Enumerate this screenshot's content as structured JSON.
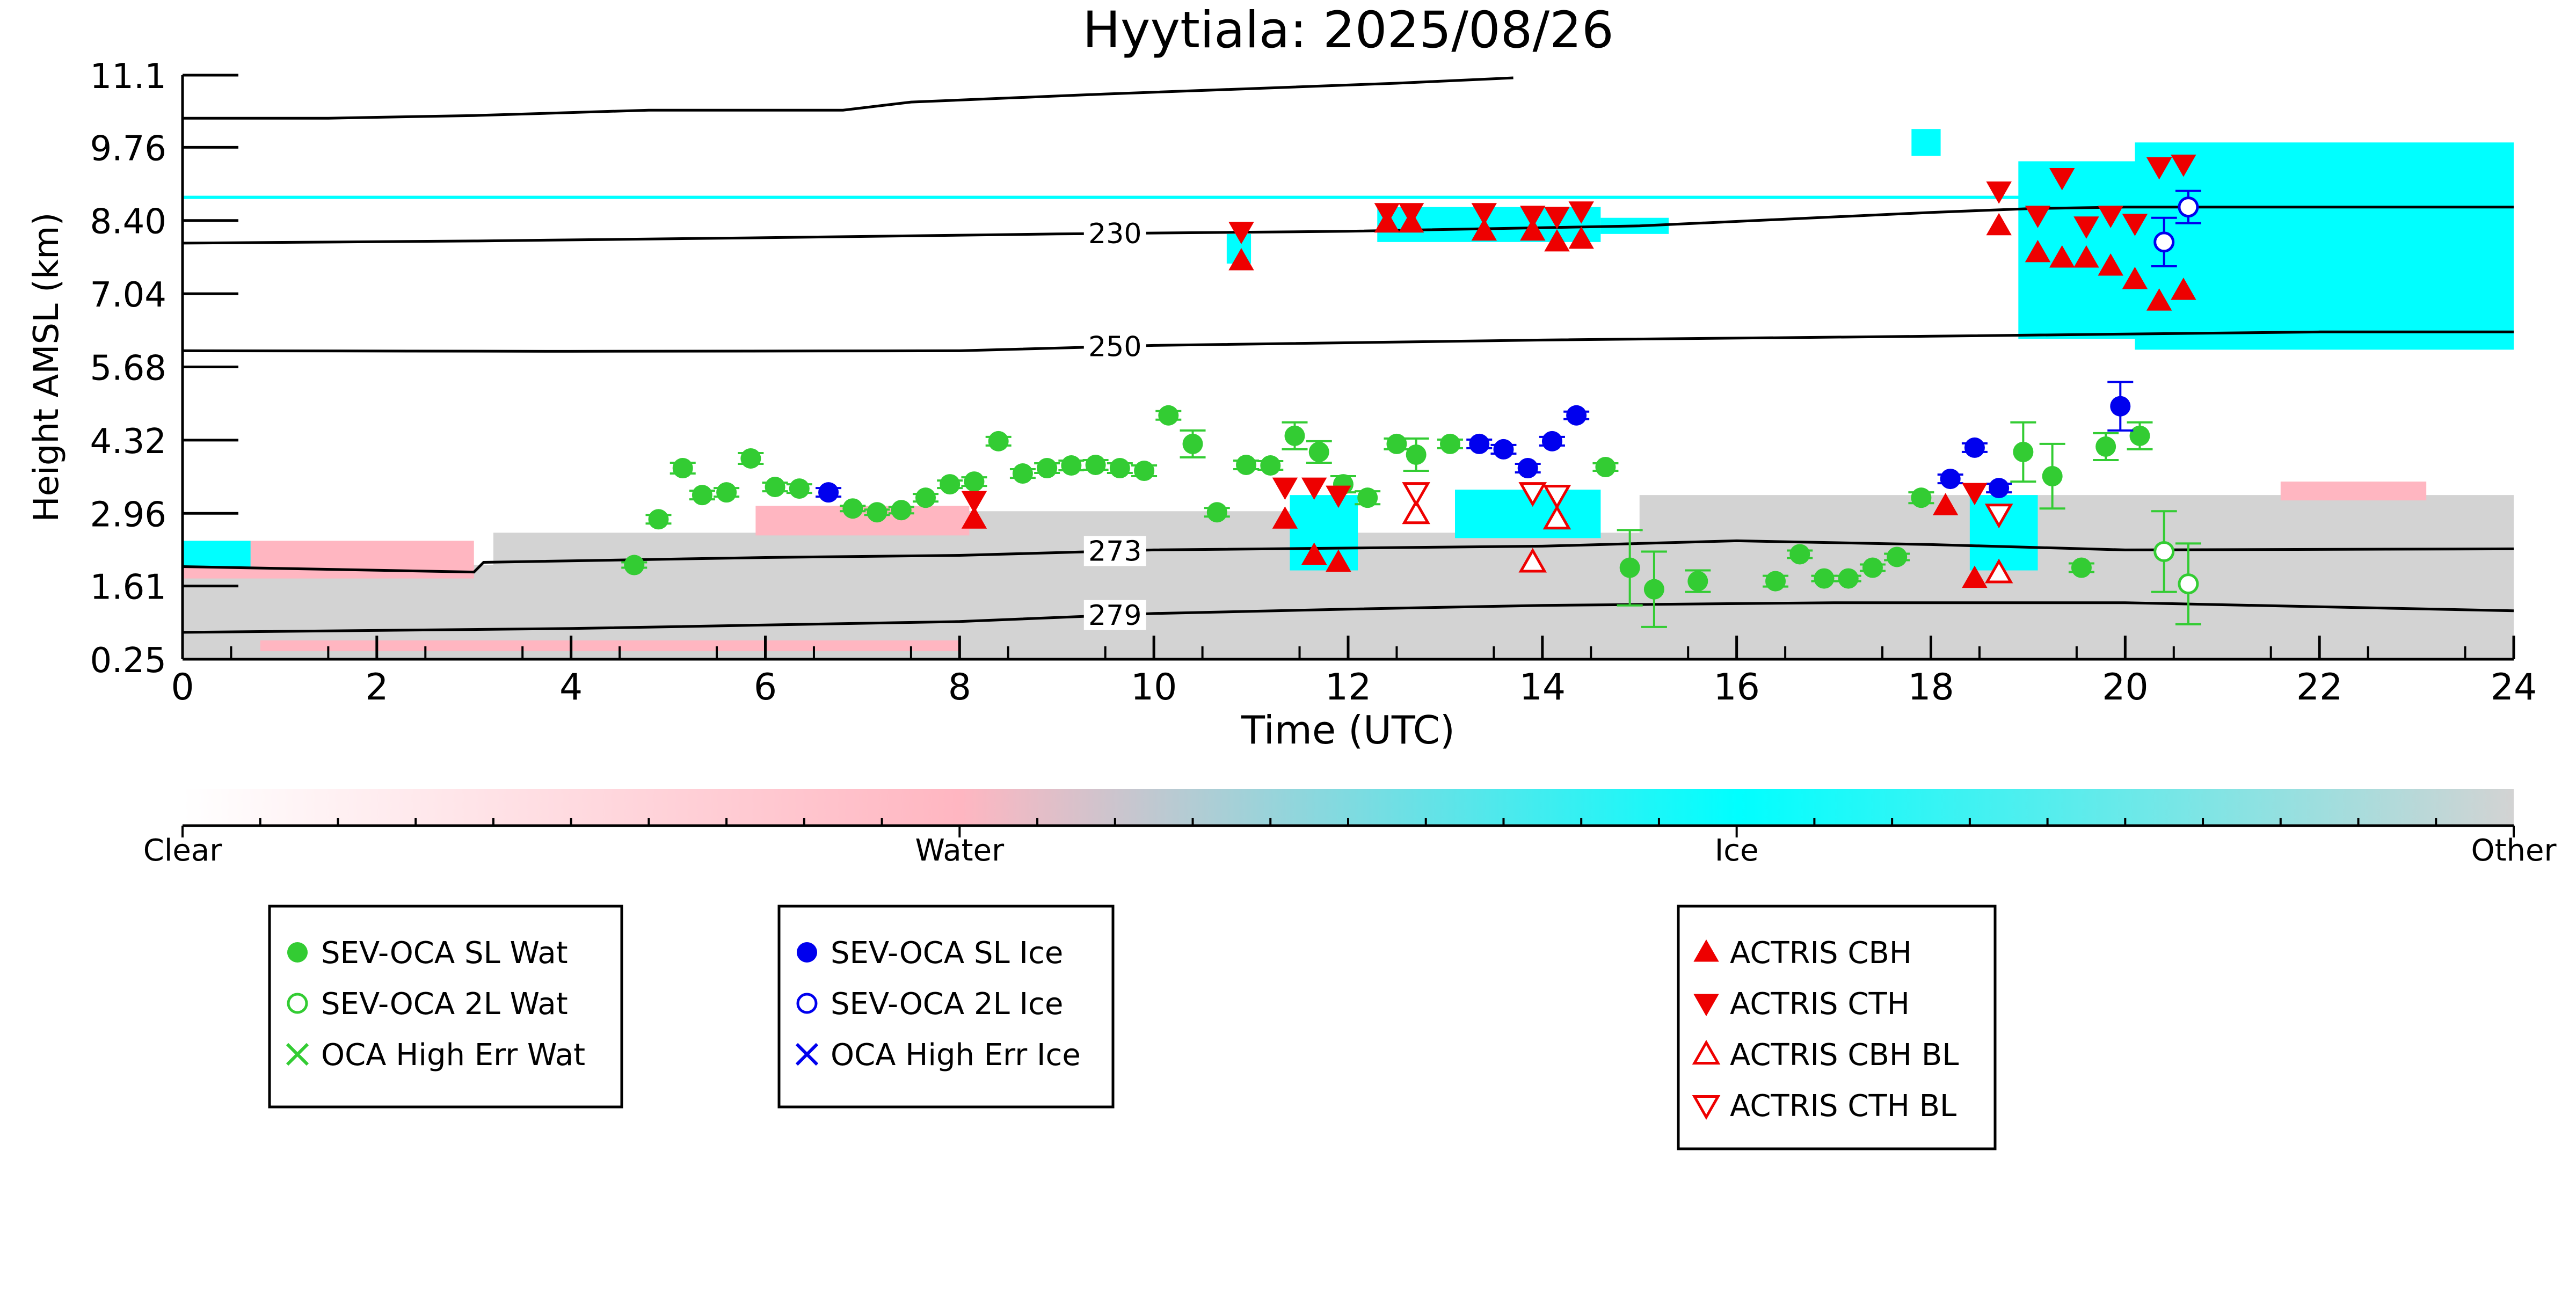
{
  "chart_data": {
    "type": "scatter",
    "title": "Hyytiala: 2025/08/26",
    "xlabel": "Time (UTC)",
    "ylabel": "Height AMSL (km)",
    "xlim": [
      0,
      24
    ],
    "ylim": [
      0.25,
      11.1
    ],
    "x_ticks": [
      "0",
      "2",
      "4",
      "6",
      "8",
      "10",
      "12",
      "14",
      "16",
      "18",
      "20",
      "22",
      "24"
    ],
    "y_ticks": [
      "0.25",
      "1.61",
      "2.96",
      "4.32",
      "5.68",
      "7.04",
      "8.40",
      "9.76",
      "11.1"
    ],
    "grid": false,
    "colors": {
      "water": "#ffb6c1",
      "ice": "#00ffff",
      "other": "#d3d3d3",
      "green": "#33cc33",
      "blue": "#0000ee",
      "red": "#ee0000"
    },
    "isotherms": [
      {
        "label": "",
        "points": [
          [
            0,
            10.3
          ],
          [
            1.5,
            10.3
          ],
          [
            3,
            10.35
          ],
          [
            4.8,
            10.45
          ],
          [
            6.8,
            10.45
          ],
          [
            7.5,
            10.6
          ],
          [
            9.5,
            10.75
          ],
          [
            11,
            10.85
          ],
          [
            12.5,
            10.95
          ],
          [
            13.7,
            11.05
          ]
        ]
      },
      {
        "label": "230",
        "points": [
          [
            0,
            7.98
          ],
          [
            3,
            8.02
          ],
          [
            6,
            8.08
          ],
          [
            9,
            8.15
          ],
          [
            12,
            8.2
          ],
          [
            15,
            8.3
          ],
          [
            18,
            8.55
          ],
          [
            19,
            8.62
          ],
          [
            20,
            8.65
          ],
          [
            24,
            8.65
          ]
        ]
      },
      {
        "label": "250",
        "points": [
          [
            0,
            5.98
          ],
          [
            4,
            5.97
          ],
          [
            8,
            5.98
          ],
          [
            10,
            6.08
          ],
          [
            14,
            6.18
          ],
          [
            18,
            6.25
          ],
          [
            22,
            6.33
          ],
          [
            24,
            6.33
          ]
        ]
      },
      {
        "label": "273",
        "points": [
          [
            0,
            1.97
          ],
          [
            3,
            1.87
          ],
          [
            3.1,
            2.05
          ],
          [
            6,
            2.14
          ],
          [
            8,
            2.18
          ],
          [
            10,
            2.28
          ],
          [
            14,
            2.35
          ],
          [
            16,
            2.45
          ],
          [
            18,
            2.38
          ],
          [
            20,
            2.28
          ],
          [
            24,
            2.3
          ]
        ]
      },
      {
        "label": "279",
        "points": [
          [
            0,
            0.75
          ],
          [
            4,
            0.82
          ],
          [
            8,
            0.95
          ],
          [
            10,
            1.1
          ],
          [
            12,
            1.18
          ],
          [
            14,
            1.25
          ],
          [
            17,
            1.3
          ],
          [
            20,
            1.3
          ],
          [
            24,
            1.15
          ]
        ]
      }
    ],
    "cloud_bands": [
      {
        "class": "Ice",
        "x0": 0,
        "x1": 24,
        "y0": 8.8,
        "y1": 8.86
      },
      {
        "class": "Other",
        "x0": 0,
        "x1": 24,
        "y0": 0.25,
        "y1": 2.0
      },
      {
        "class": "Other",
        "x0": 3.2,
        "x1": 24,
        "y0": 0.25,
        "y1": 2.6
      },
      {
        "class": "Other",
        "x0": 7.5,
        "x1": 12,
        "y0": 0.25,
        "y1": 3.0
      },
      {
        "class": "Other",
        "x0": 15,
        "x1": 24,
        "y0": 0.25,
        "y1": 3.3
      },
      {
        "class": "Water",
        "x0": 0,
        "x1": 3,
        "y0": 1.75,
        "y1": 2.45
      },
      {
        "class": "Ice",
        "x0": 0,
        "x1": 0.7,
        "y0": 1.95,
        "y1": 2.45
      },
      {
        "class": "Water",
        "x0": 5.9,
        "x1": 8.1,
        "y0": 2.55,
        "y1": 3.1
      },
      {
        "class": "Water",
        "x0": 0.8,
        "x1": 8,
        "y0": 0.4,
        "y1": 0.6
      },
      {
        "class": "Water",
        "x0": 21.6,
        "x1": 23.1,
        "y0": 3.2,
        "y1": 3.55
      },
      {
        "class": "Ice",
        "x0": 11.4,
        "x1": 12.1,
        "y0": 1.9,
        "y1": 3.3
      },
      {
        "class": "Ice",
        "x0": 13.1,
        "x1": 14.6,
        "y0": 2.5,
        "y1": 3.4
      },
      {
        "class": "Ice",
        "x0": 18.4,
        "x1": 19.1,
        "y0": 1.9,
        "y1": 3.3
      },
      {
        "class": "Ice",
        "x0": 10.75,
        "x1": 11.0,
        "y0": 7.6,
        "y1": 8.15
      },
      {
        "class": "Ice",
        "x0": 12.3,
        "x1": 14.6,
        "y0": 8.0,
        "y1": 8.65
      },
      {
        "class": "Ice",
        "x0": 14.6,
        "x1": 15.3,
        "y0": 8.15,
        "y1": 8.45
      },
      {
        "class": "Ice",
        "x0": 18.9,
        "x1": 24,
        "y0": 6.2,
        "y1": 9.5
      },
      {
        "class": "Ice",
        "x0": 20.1,
        "x1": 24,
        "y0": 6.0,
        "y1": 9.85
      },
      {
        "class": "Ice",
        "x0": 17.8,
        "x1": 18.1,
        "y0": 9.6,
        "y1": 10.1
      }
    ],
    "series": [
      {
        "name": "SEV-OCA SL Wat",
        "marker": "circle-filled",
        "color": "#33cc33",
        "points": [
          [
            4.65,
            2.0,
            0.05
          ],
          [
            4.9,
            2.85,
            0.08
          ],
          [
            5.15,
            3.8,
            0.1
          ],
          [
            5.35,
            3.3,
            0.08
          ],
          [
            5.6,
            3.35,
            0.08
          ],
          [
            5.85,
            3.98,
            0.1
          ],
          [
            6.1,
            3.45,
            0.08
          ],
          [
            6.35,
            3.42,
            0.08
          ],
          [
            6.9,
            3.05,
            0.05
          ],
          [
            7.15,
            2.98,
            0.05
          ],
          [
            7.4,
            3.02,
            0.06
          ],
          [
            7.65,
            3.25,
            0.07
          ],
          [
            7.9,
            3.5,
            0.07
          ],
          [
            8.15,
            3.55,
            0.08
          ],
          [
            8.4,
            4.3,
            0.08
          ],
          [
            8.65,
            3.7,
            0.08
          ],
          [
            8.9,
            3.8,
            0.09
          ],
          [
            9.15,
            3.85,
            0.09
          ],
          [
            9.4,
            3.86,
            0.09
          ],
          [
            9.65,
            3.8,
            0.09
          ],
          [
            9.9,
            3.75,
            0.1
          ],
          [
            10.15,
            4.78,
            0.08
          ],
          [
            10.4,
            4.25,
            0.25
          ],
          [
            10.65,
            2.98,
            0.08
          ],
          [
            10.95,
            3.86,
            0.08
          ],
          [
            11.2,
            3.85,
            0.08
          ],
          [
            11.45,
            4.4,
            0.25
          ],
          [
            11.7,
            4.1,
            0.2
          ],
          [
            11.95,
            3.5,
            0.15
          ],
          [
            12.2,
            3.25,
            0.12
          ],
          [
            12.5,
            4.25,
            0.1
          ],
          [
            12.7,
            4.05,
            0.3
          ],
          [
            13.05,
            4.25,
            0.08
          ],
          [
            14.65,
            3.82,
            0.07
          ],
          [
            14.9,
            1.95,
            0.7
          ],
          [
            15.15,
            1.55,
            0.7
          ],
          [
            15.6,
            1.7,
            0.2
          ],
          [
            16.4,
            1.7,
            0.1
          ],
          [
            16.65,
            2.2,
            0.07
          ],
          [
            16.9,
            1.75,
            0.05
          ],
          [
            17.15,
            1.75,
            0.05
          ],
          [
            17.4,
            1.95,
            0.06
          ],
          [
            17.65,
            2.15,
            0.06
          ],
          [
            17.9,
            3.25,
            0.1
          ],
          [
            18.95,
            4.1,
            0.55
          ],
          [
            19.25,
            3.65,
            0.6
          ],
          [
            19.55,
            1.95,
            0.08
          ],
          [
            19.8,
            4.2,
            0.25
          ],
          [
            20.15,
            4.4,
            0.25
          ]
        ]
      },
      {
        "name": "SEV-OCA 2L Wat",
        "marker": "circle-open",
        "color": "#33cc33",
        "points": [
          [
            20.4,
            2.25,
            0.75
          ],
          [
            20.65,
            1.65,
            0.75
          ]
        ]
      },
      {
        "name": "OCA High Err Wat",
        "marker": "x",
        "color": "#33cc33",
        "points": []
      },
      {
        "name": "SEV-OCA SL Ice",
        "marker": "circle-filled",
        "color": "#0000ee",
        "points": [
          [
            6.65,
            3.35,
            0.08
          ],
          [
            13.35,
            4.25,
            0.08
          ],
          [
            13.6,
            4.15,
            0.08
          ],
          [
            13.85,
            3.8,
            0.08
          ],
          [
            14.1,
            4.3,
            0.08
          ],
          [
            14.35,
            4.78,
            0.07
          ],
          [
            18.2,
            3.6,
            0.08
          ],
          [
            18.45,
            4.18,
            0.08
          ],
          [
            18.7,
            3.43,
            0.08
          ],
          [
            19.95,
            4.95,
            0.45
          ]
        ]
      },
      {
        "name": "SEV-OCA 2L Ice",
        "marker": "circle-open",
        "color": "#0000ee",
        "points": [
          [
            20.4,
            8.0,
            0.45
          ],
          [
            20.65,
            8.65,
            0.3
          ]
        ]
      },
      {
        "name": "OCA High Err Ice",
        "marker": "x",
        "color": "#0000ee",
        "points": []
      },
      {
        "name": "ACTRIS CBH",
        "marker": "triangle-up-filled",
        "color": "#ee0000",
        "points": [
          [
            10.9,
            7.65
          ],
          [
            12.4,
            8.35
          ],
          [
            12.65,
            8.35
          ],
          [
            13.4,
            8.2
          ],
          [
            13.9,
            8.2
          ],
          [
            14.15,
            8.0
          ],
          [
            14.4,
            8.05
          ],
          [
            8.15,
            2.85
          ],
          [
            11.35,
            2.85
          ],
          [
            11.65,
            2.18
          ],
          [
            11.9,
            2.05
          ],
          [
            18.15,
            3.1
          ],
          [
            18.45,
            1.75
          ],
          [
            18.7,
            8.3
          ],
          [
            19.1,
            7.8
          ],
          [
            19.35,
            7.7
          ],
          [
            19.6,
            7.7
          ],
          [
            19.85,
            7.55
          ],
          [
            20.1,
            7.3
          ],
          [
            20.35,
            6.9
          ],
          [
            20.6,
            7.1
          ]
        ]
      },
      {
        "name": "ACTRIS CTH",
        "marker": "triangle-down-filled",
        "color": "#ee0000",
        "points": [
          [
            10.9,
            8.2
          ],
          [
            12.4,
            8.55
          ],
          [
            12.65,
            8.55
          ],
          [
            13.4,
            8.55
          ],
          [
            13.9,
            8.5
          ],
          [
            14.15,
            8.48
          ],
          [
            14.4,
            8.58
          ],
          [
            8.15,
            3.2
          ],
          [
            11.35,
            3.45
          ],
          [
            11.65,
            3.45
          ],
          [
            11.9,
            3.3
          ],
          [
            18.45,
            3.35
          ],
          [
            18.7,
            8.95
          ],
          [
            19.1,
            8.5
          ],
          [
            19.35,
            9.2
          ],
          [
            19.6,
            8.3
          ],
          [
            19.85,
            8.5
          ],
          [
            20.1,
            8.35
          ],
          [
            20.35,
            9.4
          ],
          [
            20.6,
            9.45
          ]
        ]
      },
      {
        "name": "ACTRIS CBH BL",
        "marker": "triangle-up-open",
        "color": "#ee0000",
        "points": [
          [
            12.7,
            2.95
          ],
          [
            13.9,
            2.05
          ],
          [
            14.15,
            2.85
          ],
          [
            18.7,
            1.85
          ]
        ]
      },
      {
        "name": "ACTRIS CTH BL",
        "marker": "triangle-down-open",
        "color": "#ee0000",
        "points": [
          [
            12.7,
            3.35
          ],
          [
            13.9,
            3.35
          ],
          [
            14.15,
            3.3
          ],
          [
            18.7,
            2.95
          ]
        ]
      }
    ],
    "colorbar": {
      "labels": [
        "Clear",
        "Water",
        "Ice",
        "Other"
      ],
      "stops": [
        {
          "at": 0,
          "color": "#ffffff"
        },
        {
          "at": 0.333,
          "color": "#ffb6c1"
        },
        {
          "at": 0.667,
          "color": "#00ffff"
        },
        {
          "at": 1,
          "color": "#d3d3d3"
        }
      ]
    },
    "legends": [
      {
        "placement": "bottom-left",
        "entries": [
          "SEV-OCA SL Wat",
          "SEV-OCA 2L Wat",
          "OCA High Err Wat"
        ]
      },
      {
        "placement": "bottom-center",
        "entries": [
          "SEV-OCA SL Ice",
          "SEV-OCA 2L Ice",
          "OCA High Err Ice"
        ]
      },
      {
        "placement": "bottom-right",
        "entries": [
          "ACTRIS CBH",
          "ACTRIS CTH",
          "ACTRIS CBH BL",
          "ACTRIS CTH BL"
        ]
      }
    ]
  }
}
